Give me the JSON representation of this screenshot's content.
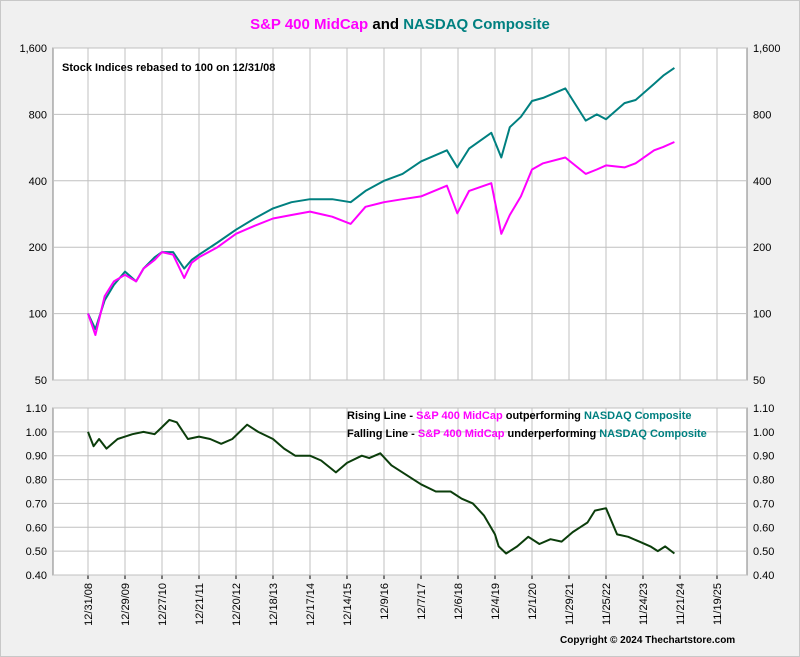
{
  "title": {
    "series1": "S&P 400 MidCap",
    "joiner": " and ",
    "series2": "NASDAQ Composite"
  },
  "colors": {
    "midcap": "#ff00ff",
    "nasdaq": "#008080",
    "ratio": "#0b3d0b",
    "background": "#f0f0f0",
    "plot": "#ffffff",
    "grid": "#c0c0c0"
  },
  "top_note": "Stock Indices rebased to 100 on 12/31/08",
  "legend": {
    "rising_prefix": "Rising Line - ",
    "rising_mid": "S&P 400 MidCap",
    "rising_middle": " outperforming ",
    "rising_nas": "NASDAQ Composite",
    "falling_prefix": "Falling Line - ",
    "falling_mid": "S&P 400 MidCap",
    "falling_middle": " underperforming ",
    "falling_nas": "NASDAQ Composite"
  },
  "copyright": "Copyright © 2024 Thechartstore.com",
  "chart_data": [
    {
      "type": "line",
      "title": "S&P 400 MidCap and NASDAQ Composite",
      "subtitle": "Stock Indices rebased to 100 on 12/31/08",
      "y_scale": "log",
      "ylim": [
        50,
        1600
      ],
      "y_ticks": [
        50,
        100,
        200,
        400,
        800,
        1600
      ],
      "y_tick_labels": [
        "50",
        "100",
        "200",
        "400",
        "800",
        "1,600"
      ],
      "x_ticks": [
        "12/31/08",
        "12/29/09",
        "12/27/10",
        "12/21/11",
        "12/20/12",
        "12/18/13",
        "12/17/14",
        "12/14/15",
        "12/9/16",
        "12/7/17",
        "12/6/18",
        "12/4/19",
        "12/1/20",
        "11/29/21",
        "11/25/22",
        "11/24/23",
        "11/21/24",
        "11/19/25"
      ],
      "x": [
        2009.0,
        2009.2,
        2009.45,
        2009.7,
        2010.0,
        2010.3,
        2010.5,
        2010.8,
        2011.0,
        2011.3,
        2011.6,
        2011.8,
        2012.0,
        2012.5,
        2013.0,
        2013.5,
        2014.0,
        2014.5,
        2015.0,
        2015.4,
        2015.6,
        2016.1,
        2016.5,
        2017.0,
        2017.5,
        2018.0,
        2018.7,
        2018.98,
        2019.3,
        2019.9,
        2020.17,
        2020.4,
        2020.7,
        2021.0,
        2021.3,
        2021.9,
        2022.45,
        2022.75,
        2023.0,
        2023.5,
        2023.8,
        2024.3,
        2024.55,
        2024.85
      ],
      "series": [
        {
          "name": "S&P 400 MidCap",
          "values": [
            100,
            80,
            120,
            140,
            150,
            140,
            160,
            175,
            190,
            185,
            145,
            170,
            180,
            200,
            230,
            250,
            270,
            280,
            290,
            280,
            275,
            255,
            305,
            320,
            330,
            340,
            380,
            285,
            360,
            390,
            230,
            280,
            340,
            450,
            480,
            510,
            430,
            450,
            470,
            460,
            480,
            550,
            570,
            600
          ]
        },
        {
          "name": "NASDAQ Composite",
          "values": [
            100,
            85,
            115,
            135,
            155,
            140,
            160,
            180,
            190,
            190,
            160,
            175,
            185,
            210,
            240,
            270,
            300,
            320,
            330,
            330,
            330,
            320,
            360,
            400,
            430,
            490,
            550,
            460,
            560,
            660,
            510,
            700,
            780,
            920,
            950,
            1050,
            750,
            800,
            760,
            900,
            930,
            1100,
            1200,
            1300
          ]
        }
      ]
    },
    {
      "type": "line",
      "xlim_labels": [
        "12/31/08",
        "11/19/25"
      ],
      "ylim": [
        0.4,
        1.1
      ],
      "y_ticks": [
        0.4,
        0.5,
        0.6,
        0.7,
        0.8,
        0.9,
        1.0,
        1.1
      ],
      "y_tick_labels": [
        "0.40",
        "0.50",
        "0.60",
        "0.70",
        "0.80",
        "0.90",
        "1.00",
        "1.10"
      ],
      "x": [
        2009.0,
        2009.15,
        2009.3,
        2009.5,
        2009.8,
        2010.2,
        2010.5,
        2010.8,
        2011.0,
        2011.2,
        2011.4,
        2011.7,
        2012.0,
        2012.3,
        2012.6,
        2012.9,
        2013.3,
        2013.6,
        2014.0,
        2014.3,
        2014.6,
        2015.0,
        2015.3,
        2015.7,
        2016.0,
        2016.4,
        2016.6,
        2016.9,
        2017.2,
        2017.6,
        2018.0,
        2018.4,
        2018.8,
        2019.1,
        2019.4,
        2019.7,
        2020.0,
        2020.1,
        2020.3,
        2020.6,
        2020.9,
        2021.2,
        2021.5,
        2021.8,
        2022.1,
        2022.3,
        2022.5,
        2022.7,
        2023.0,
        2023.3,
        2023.6,
        2023.9,
        2024.2,
        2024.4,
        2024.6,
        2024.85
      ],
      "series": [
        {
          "name": "S&P 400 MidCap / NASDAQ Composite",
          "values": [
            1.0,
            0.94,
            0.97,
            0.93,
            0.97,
            0.99,
            1.0,
            0.99,
            1.02,
            1.05,
            1.04,
            0.97,
            0.98,
            0.97,
            0.95,
            0.97,
            1.03,
            1.0,
            0.97,
            0.93,
            0.9,
            0.9,
            0.88,
            0.83,
            0.87,
            0.9,
            0.89,
            0.91,
            0.86,
            0.82,
            0.78,
            0.75,
            0.75,
            0.72,
            0.7,
            0.65,
            0.57,
            0.52,
            0.49,
            0.52,
            0.56,
            0.53,
            0.55,
            0.54,
            0.58,
            0.6,
            0.62,
            0.67,
            0.68,
            0.57,
            0.56,
            0.54,
            0.52,
            0.5,
            0.52,
            0.49
          ]
        }
      ]
    }
  ]
}
